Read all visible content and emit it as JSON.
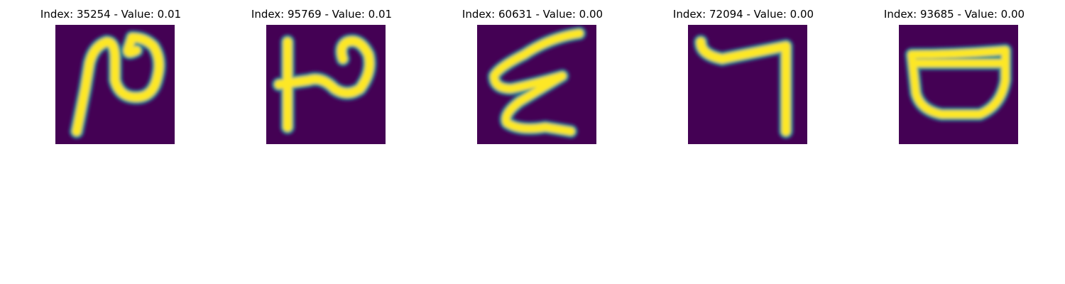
{
  "colors": {
    "background": "#440154",
    "stroke_core": "#fde725",
    "stroke_edge": "#21918c",
    "stroke_mid": "#3b528b"
  },
  "panels": [
    {
      "title": "Index: 35254 - Value: 0.01"
    },
    {
      "title": "Index: 95769 - Value: 0.01"
    },
    {
      "title": "Index: 60631 - Value: 0.00"
    },
    {
      "title": "Index: 72094 - Value: 0.00"
    },
    {
      "title": "Index: 93685 - Value: 0.00"
    }
  ]
}
